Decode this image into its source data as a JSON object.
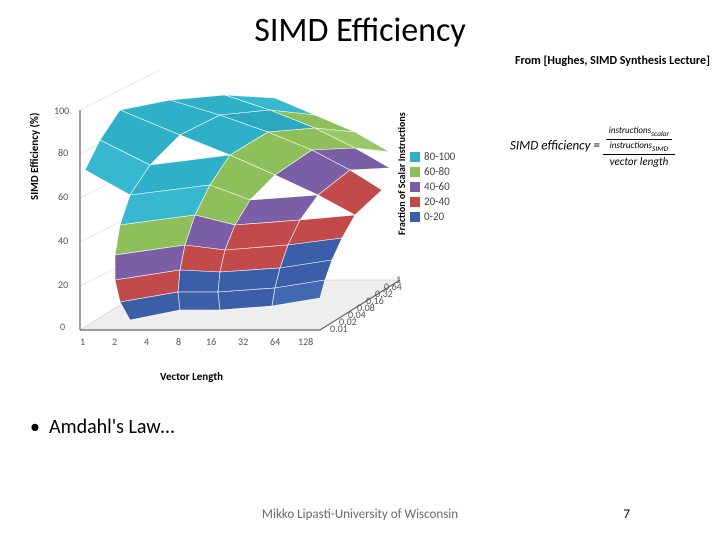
{
  "title": "SIMD Efficiency",
  "citation": "From [Hughes, SIMD Synthesis Lecture]",
  "bullet": "Amdahl's Law…",
  "footer_author": "Mikko Lipasti-University of Wisconsin",
  "footer_page": "7",
  "formula": {
    "lhs": "SIMD efficiency =",
    "outer_num_num": "instructions",
    "outer_num_num_sub": "scalar",
    "outer_num_den": "instructions",
    "outer_num_den_sub": "SIMD",
    "outer_den": "vector length"
  },
  "chart": {
    "type": "3d-surface-contour",
    "y_axis": {
      "label": "SIMD Efficiency (%)",
      "ticks": [
        "0",
        "20",
        "40",
        "60",
        "80",
        "100"
      ],
      "lim": [
        0,
        100
      ]
    },
    "x_axis": {
      "label": "Vector Length",
      "ticks": [
        "1",
        "2",
        "4",
        "8",
        "16",
        "32",
        "64",
        "128"
      ]
    },
    "z_axis": {
      "label": "Fraction of Scalar Instructions",
      "ticks": [
        "0.01",
        "0.02",
        "0.04",
        "0.08",
        "0.16",
        "0.32",
        "0.64",
        "1"
      ]
    },
    "bands": [
      {
        "label": "80-100",
        "color": "#2fb0c9"
      },
      {
        "label": "60-80",
        "color": "#8fbf5a"
      },
      {
        "label": "40-60",
        "color": "#7b5fa6"
      },
      {
        "label": "20-40",
        "color": "#c24a4a"
      },
      {
        "label": "0-20",
        "color": "#3a5ea8"
      }
    ],
    "background_color": "#ffffff",
    "grid_color": "#b8b8b8",
    "axis_color": "#666666",
    "floor_color": "#e8e8e8",
    "label_fontsize": 11,
    "tick_fontsize": 10,
    "surface_polys": [
      {
        "pts": [
          [
            100,
            40
          ],
          [
            150,
            30
          ],
          [
            200,
            45
          ],
          [
            160,
            65
          ]
        ],
        "c": "#2fb0c9"
      },
      {
        "pts": [
          [
            150,
            30
          ],
          [
            205,
            25
          ],
          [
            250,
            40
          ],
          [
            200,
            45
          ]
        ],
        "c": "#2fb0c9"
      },
      {
        "pts": [
          [
            205,
            25
          ],
          [
            255,
            28
          ],
          [
            295,
            45
          ],
          [
            250,
            40
          ]
        ],
        "c": "#37b8d0"
      },
      {
        "pts": [
          [
            160,
            65
          ],
          [
            200,
            45
          ],
          [
            248,
            62
          ],
          [
            210,
            85
          ]
        ],
        "c": "#2fb0c9"
      },
      {
        "pts": [
          [
            200,
            45
          ],
          [
            250,
            40
          ],
          [
            295,
            58
          ],
          [
            248,
            62
          ]
        ],
        "c": "#2aa8c0"
      },
      {
        "pts": [
          [
            250,
            40
          ],
          [
            295,
            45
          ],
          [
            335,
            62
          ],
          [
            295,
            58
          ]
        ],
        "c": "#8fbf5a"
      },
      {
        "pts": [
          [
            100,
            40
          ],
          [
            160,
            65
          ],
          [
            130,
            95
          ],
          [
            80,
            70
          ]
        ],
        "c": "#2fb0c9"
      },
      {
        "pts": [
          [
            80,
            70
          ],
          [
            130,
            95
          ],
          [
            110,
            125
          ],
          [
            65,
            100
          ]
        ],
        "c": "#37b8d0"
      },
      {
        "pts": [
          [
            210,
            85
          ],
          [
            248,
            62
          ],
          [
            292,
            80
          ],
          [
            255,
            105
          ]
        ],
        "c": "#8fbf5a"
      },
      {
        "pts": [
          [
            248,
            62
          ],
          [
            295,
            58
          ],
          [
            335,
            78
          ],
          [
            292,
            80
          ]
        ],
        "c": "#8fbf5a"
      },
      {
        "pts": [
          [
            295,
            58
          ],
          [
            335,
            62
          ],
          [
            370,
            82
          ],
          [
            335,
            78
          ]
        ],
        "c": "#99c868"
      },
      {
        "pts": [
          [
            130,
            95
          ],
          [
            210,
            85
          ],
          [
            190,
            115
          ],
          [
            110,
            125
          ]
        ],
        "c": "#2fb0c9"
      },
      {
        "pts": [
          [
            210,
            85
          ],
          [
            255,
            105
          ],
          [
            230,
            130
          ],
          [
            190,
            115
          ]
        ],
        "c": "#8fbf5a"
      },
      {
        "pts": [
          [
            255,
            105
          ],
          [
            292,
            80
          ],
          [
            330,
            100
          ],
          [
            298,
            125
          ]
        ],
        "c": "#7b5fa6"
      },
      {
        "pts": [
          [
            292,
            80
          ],
          [
            335,
            78
          ],
          [
            370,
            98
          ],
          [
            330,
            100
          ]
        ],
        "c": "#7b5fa6"
      },
      {
        "pts": [
          [
            110,
            125
          ],
          [
            190,
            115
          ],
          [
            175,
            145
          ],
          [
            100,
            155
          ]
        ],
        "c": "#37b8d0"
      },
      {
        "pts": [
          [
            190,
            115
          ],
          [
            230,
            130
          ],
          [
            215,
            155
          ],
          [
            175,
            145
          ]
        ],
        "c": "#8fbf5a"
      },
      {
        "pts": [
          [
            230,
            130
          ],
          [
            298,
            125
          ],
          [
            280,
            150
          ],
          [
            215,
            155
          ]
        ],
        "c": "#7b5fa6"
      },
      {
        "pts": [
          [
            298,
            125
          ],
          [
            330,
            100
          ],
          [
            362,
            120
          ],
          [
            335,
            145
          ]
        ],
        "c": "#c24a4a"
      },
      {
        "pts": [
          [
            100,
            155
          ],
          [
            175,
            145
          ],
          [
            165,
            175
          ],
          [
            95,
            185
          ]
        ],
        "c": "#8fbf5a"
      },
      {
        "pts": [
          [
            175,
            145
          ],
          [
            215,
            155
          ],
          [
            205,
            180
          ],
          [
            165,
            175
          ]
        ],
        "c": "#7b5fa6"
      },
      {
        "pts": [
          [
            215,
            155
          ],
          [
            280,
            150
          ],
          [
            268,
            175
          ],
          [
            205,
            180
          ]
        ],
        "c": "#c24a4a"
      },
      {
        "pts": [
          [
            280,
            150
          ],
          [
            335,
            145
          ],
          [
            322,
            168
          ],
          [
            268,
            175
          ]
        ],
        "c": "#c24a4a"
      },
      {
        "pts": [
          [
            95,
            185
          ],
          [
            165,
            175
          ],
          [
            160,
            200
          ],
          [
            95,
            210
          ]
        ],
        "c": "#7b5fa6"
      },
      {
        "pts": [
          [
            165,
            175
          ],
          [
            205,
            180
          ],
          [
            200,
            202
          ],
          [
            160,
            200
          ]
        ],
        "c": "#c24a4a"
      },
      {
        "pts": [
          [
            205,
            180
          ],
          [
            268,
            175
          ],
          [
            260,
            198
          ],
          [
            200,
            202
          ]
        ],
        "c": "#c24a4a"
      },
      {
        "pts": [
          [
            268,
            175
          ],
          [
            322,
            168
          ],
          [
            312,
            190
          ],
          [
            260,
            198
          ]
        ],
        "c": "#3a5ea8"
      },
      {
        "pts": [
          [
            95,
            210
          ],
          [
            160,
            200
          ],
          [
            158,
            222
          ],
          [
            100,
            232
          ]
        ],
        "c": "#c24a4a"
      },
      {
        "pts": [
          [
            160,
            200
          ],
          [
            200,
            202
          ],
          [
            198,
            222
          ],
          [
            158,
            222
          ]
        ],
        "c": "#3a5ea8"
      },
      {
        "pts": [
          [
            200,
            202
          ],
          [
            260,
            198
          ],
          [
            255,
            218
          ],
          [
            198,
            222
          ]
        ],
        "c": "#3a5ea8"
      },
      {
        "pts": [
          [
            260,
            198
          ],
          [
            312,
            190
          ],
          [
            305,
            210
          ],
          [
            255,
            218
          ]
        ],
        "c": "#3a5ea8"
      },
      {
        "pts": [
          [
            100,
            232
          ],
          [
            158,
            222
          ],
          [
            160,
            240
          ],
          [
            110,
            250
          ]
        ],
        "c": "#3a5ea8"
      },
      {
        "pts": [
          [
            158,
            222
          ],
          [
            198,
            222
          ],
          [
            200,
            240
          ],
          [
            160,
            240
          ]
        ],
        "c": "#3a5ea8"
      },
      {
        "pts": [
          [
            198,
            222
          ],
          [
            255,
            218
          ],
          [
            252,
            236
          ],
          [
            200,
            240
          ]
        ],
        "c": "#3a5ea8"
      },
      {
        "pts": [
          [
            255,
            218
          ],
          [
            305,
            210
          ],
          [
            300,
            228
          ],
          [
            252,
            236
          ]
        ],
        "c": "#4268b0"
      }
    ]
  }
}
